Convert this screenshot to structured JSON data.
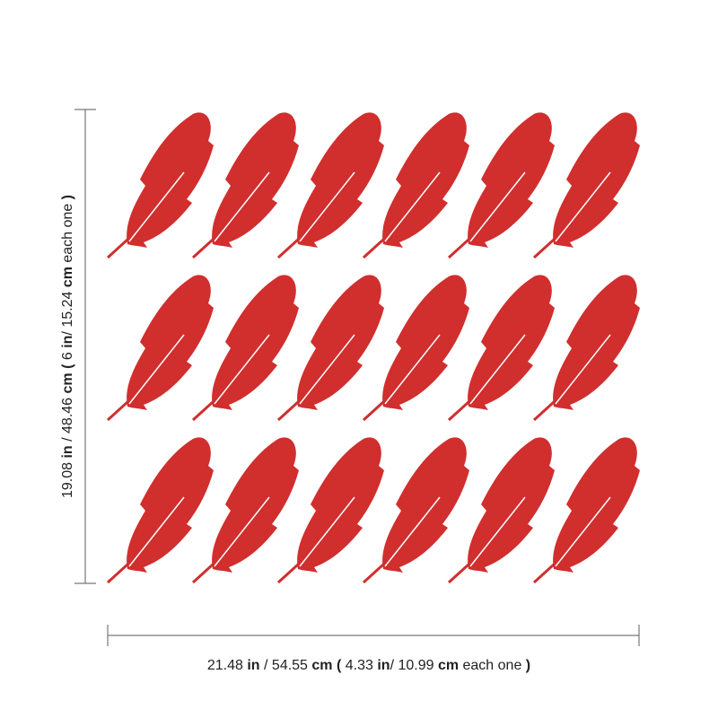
{
  "dimensions": {
    "height": {
      "segments": [
        {
          "text": "19.08 ",
          "bold": false
        },
        {
          "text": "in",
          "bold": true
        },
        {
          "text": " / 48.46 ",
          "bold": false
        },
        {
          "text": "cm",
          "bold": true
        },
        {
          "text": " ( ",
          "bold": true
        },
        {
          "text": "6 ",
          "bold": false
        },
        {
          "text": "in",
          "bold": true
        },
        {
          "text": "/ 15.24 ",
          "bold": false
        },
        {
          "text": "cm",
          "bold": true
        },
        {
          "text": " each one ",
          "bold": false
        },
        {
          "text": ")",
          "bold": true
        }
      ]
    },
    "width": {
      "segments": [
        {
          "text": "21.48 ",
          "bold": false
        },
        {
          "text": "in",
          "bold": true
        },
        {
          "text": " / 54.55 ",
          "bold": false
        },
        {
          "text": "cm",
          "bold": true
        },
        {
          "text": " ( ",
          "bold": true
        },
        {
          "text": "4.33 ",
          "bold": false
        },
        {
          "text": "in",
          "bold": true
        },
        {
          "text": "/ 10.99 ",
          "bold": false
        },
        {
          "text": "cm",
          "bold": true
        },
        {
          "text": " each one ",
          "bold": false
        },
        {
          "text": ")",
          "bold": true
        }
      ]
    }
  }
}
